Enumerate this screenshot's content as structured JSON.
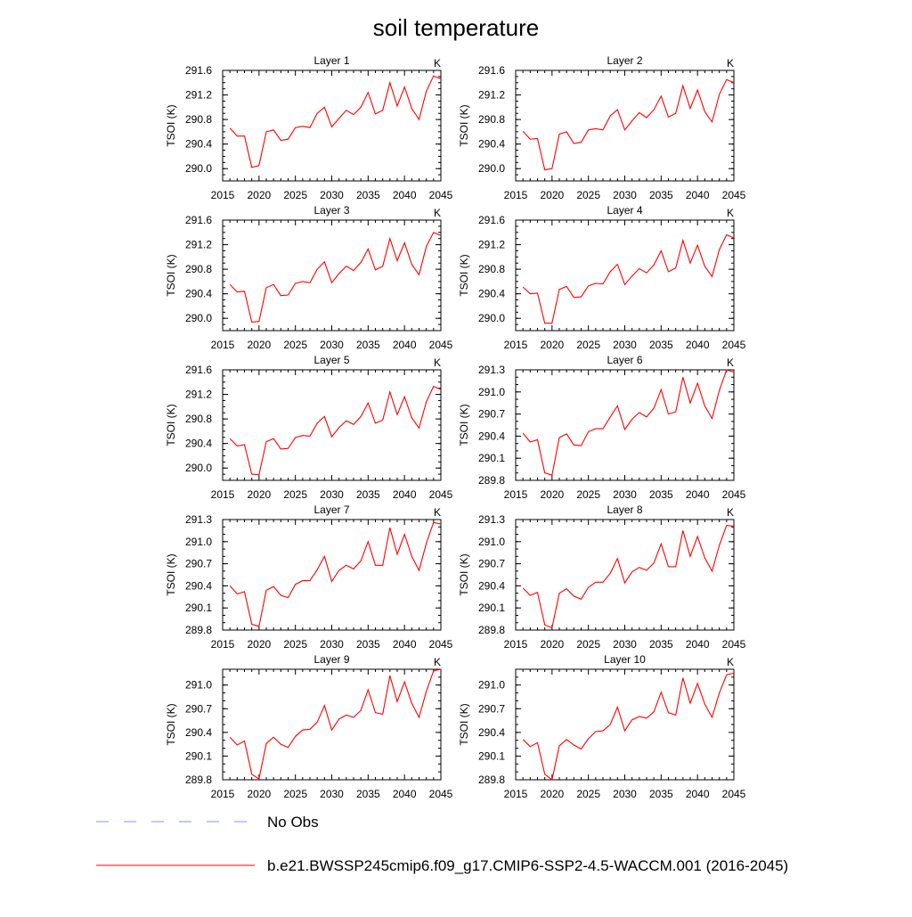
{
  "figure": {
    "title": "soil temperature"
  },
  "legend": [
    {
      "label": "No Obs",
      "color": "#8c8cff",
      "dash": true
    },
    {
      "label": "b.e21.BWSSP245cmip6.f09_g17.CMIP6-SSP2-4.5-WACCM.001 (2016-2045)",
      "color": "#ff0000",
      "dash": false
    }
  ],
  "chart_data": [
    {
      "type": "line",
      "title": "Layer 1",
      "unit": "K",
      "ylabel": "TSOI  (K)",
      "xlim": [
        2015,
        2045
      ],
      "ylim": [
        289.8,
        291.6
      ],
      "xticks": [
        2015,
        2020,
        2025,
        2030,
        2035,
        2040,
        2045
      ],
      "yticks": [
        "290.0",
        "290.4",
        "290.8",
        "291.2",
        "291.6"
      ],
      "x": [
        2016,
        2017,
        2018,
        2019,
        2020,
        2021,
        2022,
        2023,
        2024,
        2025,
        2026,
        2027,
        2028,
        2029,
        2030,
        2031,
        2032,
        2033,
        2034,
        2035,
        2036,
        2037,
        2038,
        2039,
        2040,
        2041,
        2042,
        2043,
        2044,
        2045
      ],
      "series": [
        {
          "color": "#ff0000",
          "values": [
            290.66,
            290.53,
            290.53,
            290.02,
            290.05,
            290.6,
            290.63,
            290.46,
            290.48,
            290.67,
            290.69,
            290.67,
            290.9,
            291.0,
            290.68,
            290.82,
            290.95,
            290.88,
            291.0,
            291.24,
            290.89,
            290.95,
            291.4,
            291.02,
            291.33,
            290.98,
            290.8,
            291.26,
            291.51,
            291.46
          ]
        }
      ]
    },
    {
      "type": "line",
      "title": "Layer 2",
      "unit": "K",
      "ylabel": "TSOI  (K)",
      "xlim": [
        2015,
        2045
      ],
      "ylim": [
        289.8,
        291.6
      ],
      "xticks": [
        2015,
        2020,
        2025,
        2030,
        2035,
        2040,
        2045
      ],
      "yticks": [
        "290.0",
        "290.4",
        "290.8",
        "291.2",
        "291.6"
      ],
      "x": [
        2016,
        2017,
        2018,
        2019,
        2020,
        2021,
        2022,
        2023,
        2024,
        2025,
        2026,
        2027,
        2028,
        2029,
        2030,
        2031,
        2032,
        2033,
        2034,
        2035,
        2036,
        2037,
        2038,
        2039,
        2040,
        2041,
        2042,
        2043,
        2044,
        2045
      ],
      "series": [
        {
          "color": "#ff0000",
          "values": [
            290.61,
            290.48,
            290.49,
            289.98,
            290.0,
            290.56,
            290.6,
            290.41,
            290.43,
            290.63,
            290.65,
            290.63,
            290.86,
            290.96,
            290.63,
            290.78,
            290.91,
            290.83,
            290.96,
            291.18,
            290.84,
            290.9,
            291.35,
            290.98,
            291.28,
            290.93,
            290.76,
            291.21,
            291.45,
            291.4
          ]
        }
      ]
    },
    {
      "type": "line",
      "title": "Layer 3",
      "unit": "K",
      "ylabel": "TSOI  (K)",
      "xlim": [
        2015,
        2045
      ],
      "ylim": [
        289.8,
        291.6
      ],
      "xticks": [
        2015,
        2020,
        2025,
        2030,
        2035,
        2040,
        2045
      ],
      "yticks": [
        "290.0",
        "290.4",
        "290.8",
        "291.2",
        "291.6"
      ],
      "x": [
        2016,
        2017,
        2018,
        2019,
        2020,
        2021,
        2022,
        2023,
        2024,
        2025,
        2026,
        2027,
        2028,
        2029,
        2030,
        2031,
        2032,
        2033,
        2034,
        2035,
        2036,
        2037,
        2038,
        2039,
        2040,
        2041,
        2042,
        2043,
        2044,
        2045
      ],
      "series": [
        {
          "color": "#ff0000",
          "values": [
            290.55,
            290.43,
            290.44,
            289.94,
            289.95,
            290.5,
            290.55,
            290.37,
            290.38,
            290.57,
            290.6,
            290.58,
            290.8,
            290.92,
            290.58,
            290.73,
            290.85,
            290.78,
            290.91,
            291.13,
            290.79,
            290.85,
            291.3,
            290.94,
            291.23,
            290.88,
            290.71,
            291.17,
            291.4,
            291.35
          ]
        }
      ]
    },
    {
      "type": "line",
      "title": "Layer 4",
      "unit": "K",
      "ylabel": "TSOI  (K)",
      "xlim": [
        2015,
        2045
      ],
      "ylim": [
        289.8,
        291.6
      ],
      "xticks": [
        2015,
        2020,
        2025,
        2030,
        2035,
        2040,
        2045
      ],
      "yticks": [
        "290.0",
        "290.4",
        "290.8",
        "291.2",
        "291.6"
      ],
      "x": [
        2016,
        2017,
        2018,
        2019,
        2020,
        2021,
        2022,
        2023,
        2024,
        2025,
        2026,
        2027,
        2028,
        2029,
        2030,
        2031,
        2032,
        2033,
        2034,
        2035,
        2036,
        2037,
        2038,
        2039,
        2040,
        2041,
        2042,
        2043,
        2044,
        2045
      ],
      "series": [
        {
          "color": "#ff0000",
          "values": [
            290.51,
            290.4,
            290.41,
            289.92,
            289.92,
            290.47,
            290.52,
            290.34,
            290.35,
            290.53,
            290.57,
            290.56,
            290.76,
            290.88,
            290.55,
            290.69,
            290.81,
            290.74,
            290.87,
            291.1,
            290.76,
            290.82,
            291.27,
            290.9,
            291.19,
            290.85,
            290.68,
            291.12,
            291.36,
            291.31
          ]
        }
      ]
    },
    {
      "type": "line",
      "title": "Layer 5",
      "unit": "K",
      "ylabel": "TSOI  (K)",
      "xlim": [
        2015,
        2045
      ],
      "ylim": [
        289.8,
        291.6
      ],
      "xticks": [
        2015,
        2020,
        2025,
        2030,
        2035,
        2040,
        2045
      ],
      "yticks": [
        "290.0",
        "290.4",
        "290.8",
        "291.2",
        "291.6"
      ],
      "x": [
        2016,
        2017,
        2018,
        2019,
        2020,
        2021,
        2022,
        2023,
        2024,
        2025,
        2026,
        2027,
        2028,
        2029,
        2030,
        2031,
        2032,
        2033,
        2034,
        2035,
        2036,
        2037,
        2038,
        2039,
        2040,
        2041,
        2042,
        2043,
        2044,
        2045
      ],
      "series": [
        {
          "color": "#ff0000",
          "values": [
            290.48,
            290.36,
            290.38,
            289.9,
            289.89,
            290.43,
            290.48,
            290.31,
            290.32,
            290.5,
            290.53,
            290.52,
            290.73,
            290.84,
            290.51,
            290.66,
            290.77,
            290.71,
            290.84,
            291.06,
            290.73,
            290.78,
            291.24,
            290.87,
            291.16,
            290.82,
            290.65,
            291.08,
            291.33,
            291.28
          ]
        }
      ]
    },
    {
      "type": "line",
      "title": "Layer 6",
      "unit": "K",
      "ylabel": "TSOI  (K)",
      "xlim": [
        2015,
        2045
      ],
      "ylim": [
        289.8,
        291.3
      ],
      "xticks": [
        2015,
        2020,
        2025,
        2030,
        2035,
        2040,
        2045
      ],
      "yticks": [
        "289.8",
        "290.1",
        "290.4",
        "290.7",
        "291.0",
        "291.3"
      ],
      "x": [
        2016,
        2017,
        2018,
        2019,
        2020,
        2021,
        2022,
        2023,
        2024,
        2025,
        2026,
        2027,
        2028,
        2029,
        2030,
        2031,
        2032,
        2033,
        2034,
        2035,
        2036,
        2037,
        2038,
        2039,
        2040,
        2041,
        2042,
        2043,
        2044,
        2045
      ],
      "series": [
        {
          "color": "#ff0000",
          "values": [
            290.44,
            290.32,
            290.35,
            289.9,
            289.87,
            290.38,
            290.43,
            290.28,
            290.27,
            290.46,
            290.5,
            290.5,
            290.66,
            290.81,
            290.49,
            290.63,
            290.72,
            290.66,
            290.78,
            291.03,
            290.7,
            290.73,
            291.2,
            290.85,
            291.12,
            290.81,
            290.64,
            291.02,
            291.3,
            291.27
          ]
        }
      ]
    },
    {
      "type": "line",
      "title": "Layer 7",
      "unit": "K",
      "ylabel": "TSOI  (K)",
      "xlim": [
        2015,
        2045
      ],
      "ylim": [
        289.8,
        291.3
      ],
      "xticks": [
        2015,
        2020,
        2025,
        2030,
        2035,
        2040,
        2045
      ],
      "yticks": [
        "289.8",
        "290.1",
        "290.4",
        "290.7",
        "291.0",
        "291.3"
      ],
      "x": [
        2016,
        2017,
        2018,
        2019,
        2020,
        2021,
        2022,
        2023,
        2024,
        2025,
        2026,
        2027,
        2028,
        2029,
        2030,
        2031,
        2032,
        2033,
        2034,
        2035,
        2036,
        2037,
        2038,
        2039,
        2040,
        2041,
        2042,
        2043,
        2044,
        2045
      ],
      "series": [
        {
          "color": "#ff0000",
          "values": [
            290.4,
            290.29,
            290.32,
            289.88,
            289.85,
            290.34,
            290.39,
            290.27,
            290.24,
            290.42,
            290.47,
            290.47,
            290.62,
            290.8,
            290.46,
            290.61,
            290.68,
            290.63,
            290.74,
            291.0,
            290.68,
            290.68,
            291.19,
            290.83,
            291.1,
            290.8,
            290.61,
            290.98,
            291.26,
            291.24
          ]
        }
      ]
    },
    {
      "type": "line",
      "title": "Layer 8",
      "unit": "K",
      "ylabel": "TSOI  (K)",
      "xlim": [
        2015,
        2045
      ],
      "ylim": [
        289.8,
        291.3
      ],
      "xticks": [
        2015,
        2020,
        2025,
        2030,
        2035,
        2040,
        2045
      ],
      "yticks": [
        "289.8",
        "290.1",
        "290.4",
        "290.7",
        "291.0",
        "291.3"
      ],
      "x": [
        2016,
        2017,
        2018,
        2019,
        2020,
        2021,
        2022,
        2023,
        2024,
        2025,
        2026,
        2027,
        2028,
        2029,
        2030,
        2031,
        2032,
        2033,
        2034,
        2035,
        2036,
        2037,
        2038,
        2039,
        2040,
        2041,
        2042,
        2043,
        2044,
        2045
      ],
      "series": [
        {
          "color": "#ff0000",
          "values": [
            290.37,
            290.27,
            290.31,
            289.87,
            289.83,
            290.3,
            290.36,
            290.26,
            290.22,
            290.38,
            290.45,
            290.45,
            290.57,
            290.77,
            290.44,
            290.59,
            290.65,
            290.61,
            290.71,
            290.97,
            290.66,
            290.66,
            291.15,
            290.8,
            291.07,
            290.78,
            290.6,
            290.95,
            291.22,
            291.21
          ]
        }
      ]
    },
    {
      "type": "line",
      "title": "Layer 9",
      "unit": "K",
      "ylabel": "TSOI  (K)",
      "xlim": [
        2015,
        2045
      ],
      "ylim": [
        289.8,
        291.2
      ],
      "xticks": [
        2015,
        2020,
        2025,
        2030,
        2035,
        2040,
        2045
      ],
      "yticks": [
        "289.8",
        "290.1",
        "290.4",
        "290.7",
        "291.0"
      ],
      "x": [
        2016,
        2017,
        2018,
        2019,
        2020,
        2021,
        2022,
        2023,
        2024,
        2025,
        2026,
        2027,
        2028,
        2029,
        2030,
        2031,
        2032,
        2033,
        2034,
        2035,
        2036,
        2037,
        2038,
        2039,
        2040,
        2041,
        2042,
        2043,
        2044,
        2045
      ],
      "series": [
        {
          "color": "#ff0000",
          "values": [
            290.34,
            290.24,
            290.29,
            289.87,
            289.81,
            290.26,
            290.34,
            290.25,
            290.21,
            290.35,
            290.43,
            290.44,
            290.53,
            290.74,
            290.43,
            290.57,
            290.62,
            290.59,
            290.68,
            290.94,
            290.65,
            290.63,
            291.12,
            290.79,
            291.04,
            290.77,
            290.59,
            290.92,
            291.18,
            291.2
          ]
        }
      ]
    },
    {
      "type": "line",
      "title": "Layer 10",
      "unit": "K",
      "ylabel": "TSOI  (K)",
      "xlim": [
        2015,
        2045
      ],
      "ylim": [
        289.8,
        291.2
      ],
      "xticks": [
        2015,
        2020,
        2025,
        2030,
        2035,
        2040,
        2045
      ],
      "yticks": [
        "289.8",
        "290.1",
        "290.4",
        "290.7",
        "291.0"
      ],
      "x": [
        2016,
        2017,
        2018,
        2019,
        2020,
        2021,
        2022,
        2023,
        2024,
        2025,
        2026,
        2027,
        2028,
        2029,
        2030,
        2031,
        2032,
        2033,
        2034,
        2035,
        2036,
        2037,
        2038,
        2039,
        2040,
        2041,
        2042,
        2043,
        2044,
        2045
      ],
      "series": [
        {
          "color": "#ff0000",
          "values": [
            290.31,
            290.22,
            290.27,
            289.87,
            289.8,
            290.23,
            290.31,
            290.24,
            290.19,
            290.32,
            290.41,
            290.42,
            290.5,
            290.72,
            290.42,
            290.56,
            290.6,
            290.58,
            290.66,
            290.91,
            290.65,
            290.62,
            291.09,
            290.77,
            291.02,
            290.76,
            290.59,
            290.9,
            291.13,
            291.15
          ]
        }
      ]
    }
  ]
}
